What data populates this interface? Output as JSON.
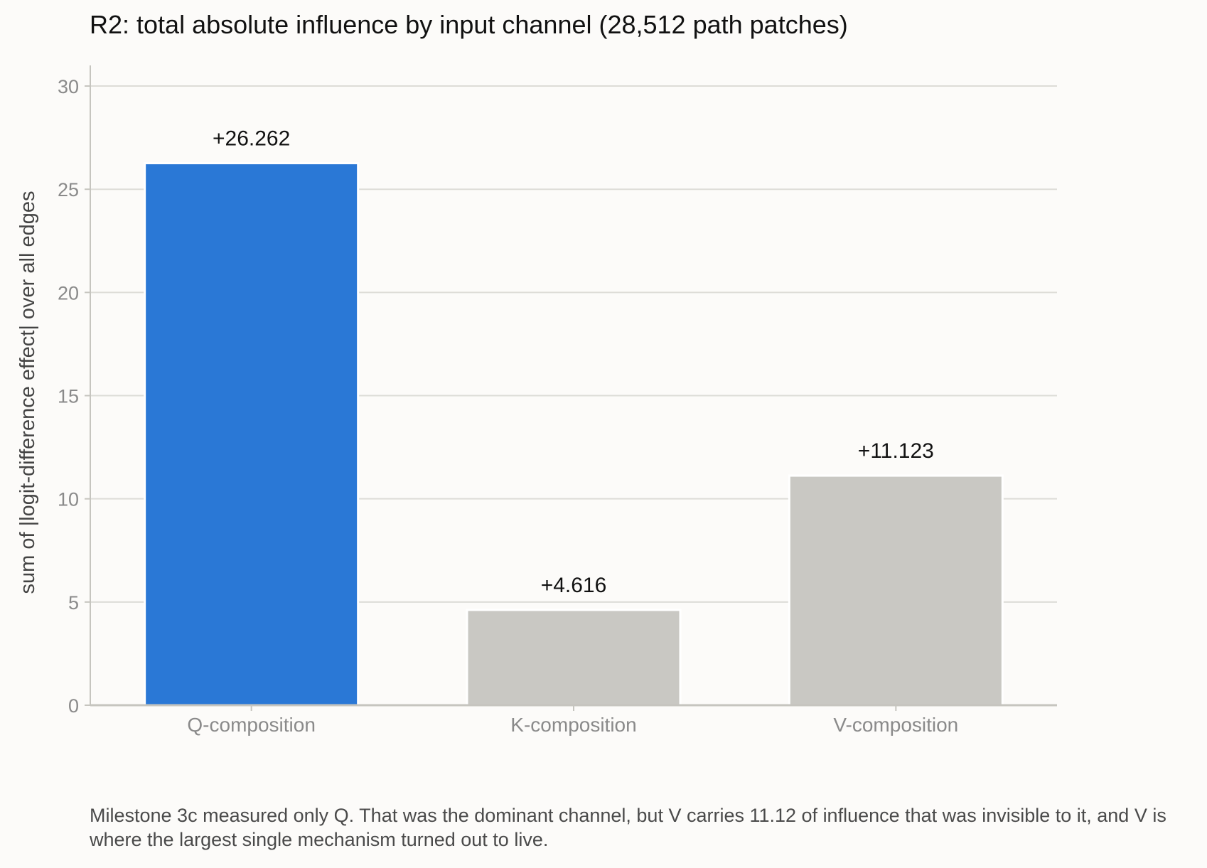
{
  "chart_data": {
    "type": "bar",
    "title": "R2: total absolute influence by input channel (28,512 path patches)",
    "ylabel": "sum of |logit-difference effect| over all edges",
    "xlabel": "",
    "categories": [
      "Q-composition",
      "K-composition",
      "V-composition"
    ],
    "values": [
      26.262,
      4.616,
      11.123
    ],
    "value_labels": [
      "+26.262",
      "+4.616",
      "+11.123"
    ],
    "bar_colors": [
      "#2a78d6",
      "#c9c8c3",
      "#c9c8c3"
    ],
    "ylim": [
      0,
      31
    ],
    "yticks": [
      0,
      5,
      10,
      15,
      20,
      25,
      30
    ],
    "grid": true,
    "legend": "none"
  },
  "caption": "Milestone 3c measured only Q. That was the dominant channel, but V carries 11.12 of influence that was invisible to it, and V is where the largest single mechanism turned out to live.",
  "colors": {
    "grid": "#dddcd7",
    "axis": "#c6c5bf",
    "tick_text": "#8a8a8a",
    "label_text": "#111111"
  }
}
